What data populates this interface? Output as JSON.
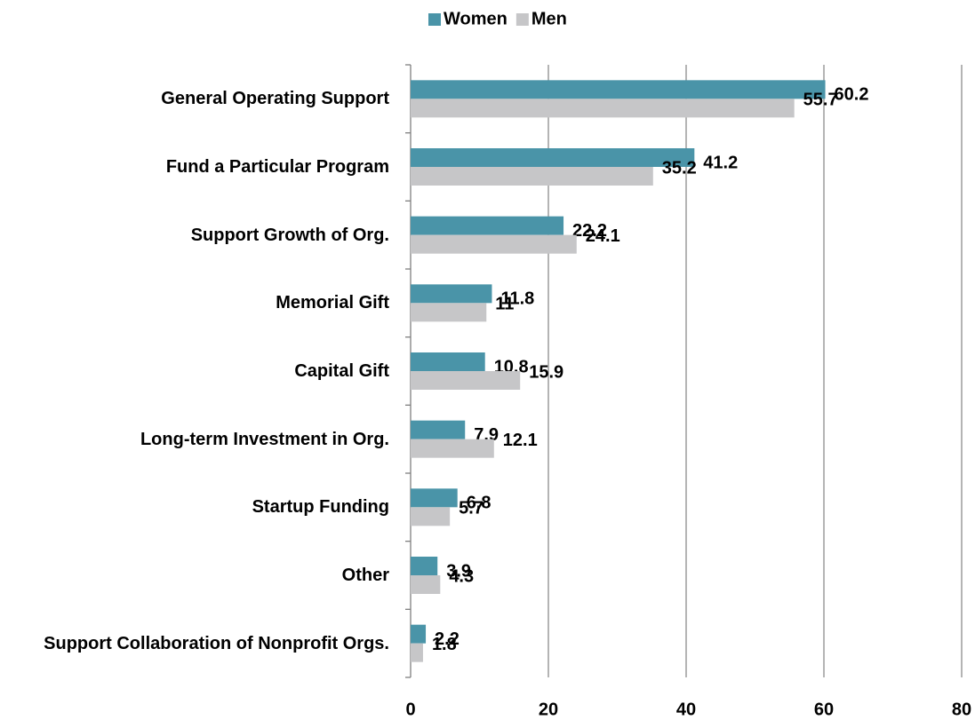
{
  "chart_data": {
    "type": "bar",
    "orientation": "horizontal",
    "categories": [
      "General Operating Support",
      "Fund a Particular Program",
      "Support Growth of Org.",
      "Memorial Gift",
      "Capital Gift",
      "Long-term Investment in Org.",
      "Startup Funding",
      "Other",
      "Support Collaboration of Nonprofit Orgs."
    ],
    "series": [
      {
        "name": "Women",
        "color": "#4a94a8",
        "values": [
          60.2,
          41.2,
          22.2,
          11.8,
          10.8,
          7.9,
          6.8,
          3.9,
          2.2
        ]
      },
      {
        "name": "Men",
        "color": "#c6c6c8",
        "values": [
          55.7,
          35.2,
          24.1,
          11,
          15.9,
          12.1,
          5.7,
          4.3,
          1.8
        ]
      }
    ],
    "xlim": [
      0,
      80
    ],
    "xticks": [
      0,
      20,
      40,
      60,
      80
    ],
    "grid": true,
    "legend": "top"
  }
}
